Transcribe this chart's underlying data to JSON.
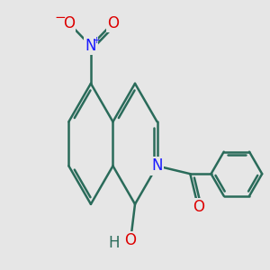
{
  "background_color": "#e6e6e6",
  "bond_color": "#2a6b5a",
  "bond_width": 1.8,
  "atom_colors": {
    "N": "#1a1aff",
    "O": "#dd0000",
    "H": "#2a6b5a"
  },
  "font_size": 12
}
